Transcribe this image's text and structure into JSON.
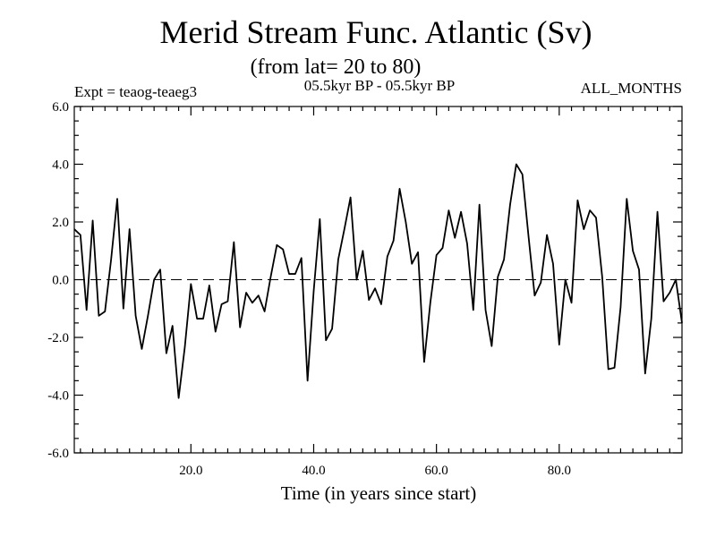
{
  "chart_data": {
    "type": "line",
    "title": "Merid Stream Func. Atlantic (Sv)",
    "subtitle": "(from lat= 20 to 80)",
    "expt_label": "Expt = teaog-teaeg3",
    "period_label": "05.5kyr BP - 05.5kyr BP",
    "months_label": "ALL_MONTHS",
    "xlabel": "Time (in years since start)",
    "ylabel": "",
    "xlim": [
      1,
      100
    ],
    "ylim": [
      -6,
      6
    ],
    "x_ticks": [
      20,
      40,
      60,
      80
    ],
    "x_tick_labels": [
      "20.0",
      "40.0",
      "60.0",
      "80.0"
    ],
    "y_ticks": [
      -6,
      -4,
      -2,
      0,
      2,
      4,
      6
    ],
    "y_tick_labels": [
      "-6.0",
      "-4.0",
      "-2.0",
      "0.0",
      "2.0",
      "4.0",
      "6.0"
    ],
    "reference_line": {
      "y": 0,
      "style": "dashed"
    },
    "series": [
      {
        "name": "Merid Stream Func.",
        "x": [
          1,
          2,
          3,
          4,
          5,
          6,
          7,
          8,
          9,
          10,
          11,
          12,
          13,
          14,
          15,
          16,
          17,
          18,
          19,
          20,
          21,
          22,
          23,
          24,
          25,
          26,
          27,
          28,
          29,
          30,
          31,
          32,
          33,
          34,
          35,
          36,
          37,
          38,
          39,
          40,
          41,
          42,
          43,
          44,
          45,
          46,
          47,
          48,
          49,
          50,
          51,
          52,
          53,
          54,
          55,
          56,
          57,
          58,
          59,
          60,
          61,
          62,
          63,
          64,
          65,
          66,
          67,
          68,
          69,
          70,
          71,
          72,
          73,
          74,
          75,
          76,
          77,
          78,
          79,
          80,
          81,
          82,
          83,
          84,
          85,
          86,
          87,
          88,
          89,
          90,
          91,
          92,
          93,
          94,
          95,
          96,
          97,
          98,
          99,
          100
        ],
        "values": [
          1.75,
          1.55,
          -1.05,
          2.05,
          -1.25,
          -1.1,
          0.7,
          2.8,
          -1.0,
          1.75,
          -1.25,
          -2.4,
          -1.25,
          0.0,
          0.35,
          -2.55,
          -1.6,
          -4.1,
          -2.35,
          -0.15,
          -1.35,
          -1.35,
          -0.2,
          -1.8,
          -0.85,
          -0.75,
          1.3,
          -1.65,
          -0.45,
          -0.8,
          -0.55,
          -1.1,
          0.1,
          1.2,
          1.05,
          0.2,
          0.2,
          0.75,
          -3.5,
          -0.4,
          2.1,
          -2.1,
          -1.7,
          0.7,
          1.75,
          2.85,
          0.0,
          1.0,
          -0.7,
          -0.3,
          -0.85,
          0.8,
          1.35,
          3.15,
          2.0,
          0.55,
          0.95,
          -2.85,
          -0.8,
          0.85,
          1.1,
          2.4,
          1.45,
          2.35,
          1.25,
          -1.05,
          2.6,
          -1.05,
          -2.3,
          0.1,
          0.7,
          2.6,
          4.0,
          3.65,
          1.5,
          -0.55,
          -0.1,
          1.55,
          0.55,
          -2.25,
          0.0,
          -0.8,
          2.75,
          1.75,
          2.4,
          2.15,
          0.1,
          -3.1,
          -3.05,
          -0.95,
          2.8,
          1.0,
          0.35,
          -3.25,
          -1.35,
          2.35,
          -0.75,
          -0.45,
          0.0,
          -1.5
        ]
      }
    ]
  }
}
